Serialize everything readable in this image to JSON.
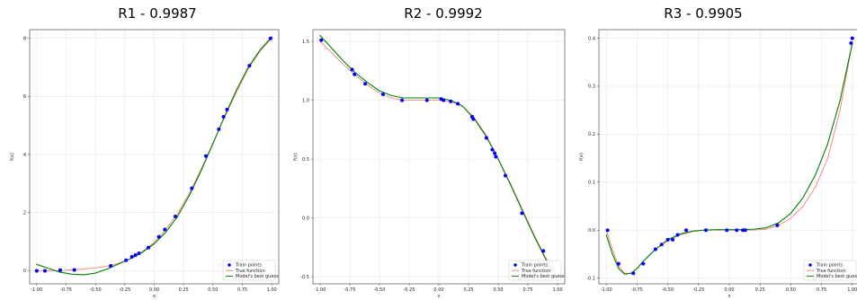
{
  "legend": {
    "train": "Train points",
    "true": "True function",
    "model": "Model's best guess"
  },
  "colors": {
    "train": "#0000ff",
    "true": "#f08080",
    "model": "#008000",
    "grid": "#e6e6e6"
  },
  "chart_data": [
    {
      "type": "line",
      "title": "R1 - 0.9987",
      "xlabel": "x",
      "ylabel": "f(x)",
      "xlim": [
        -1.06,
        1.06
      ],
      "ylim": [
        -0.45,
        8.3
      ],
      "xticks": [
        -1.0,
        -0.75,
        -0.5,
        -0.25,
        0.0,
        0.25,
        0.5,
        0.75,
        1.0
      ],
      "xtick_labels": [
        "-1.00",
        "-0.75",
        "-0.50",
        "-0.25",
        "0.00",
        "0.25",
        "0.50",
        "0.75",
        "1.00"
      ],
      "yticks": [
        0,
        2,
        4,
        6,
        8
      ],
      "ytick_labels": [
        "0",
        "2",
        "4",
        "6",
        "8"
      ],
      "grid": true,
      "legend_position": "bottom-right",
      "train_points": {
        "x": [
          -1.0,
          -0.93,
          -0.8,
          -0.68,
          -0.37,
          -0.24,
          -0.19,
          -0.16,
          -0.13,
          -0.05,
          0.04,
          0.09,
          0.18,
          0.32,
          0.44,
          0.55,
          0.59,
          0.62,
          0.81,
          0.99
        ],
        "y": [
          0.0,
          0.0,
          0.02,
          0.03,
          0.17,
          0.36,
          0.48,
          0.54,
          0.6,
          0.8,
          1.17,
          1.42,
          1.87,
          2.84,
          3.95,
          4.87,
          5.3,
          5.55,
          7.06,
          8.0
        ]
      },
      "series": [
        {
          "name": "True function",
          "x": [
            -1.0,
            -0.9,
            -0.8,
            -0.7,
            -0.6,
            -0.5,
            -0.4,
            -0.3,
            -0.2,
            -0.1,
            0.0,
            0.1,
            0.2,
            0.3,
            0.4,
            0.5,
            0.6,
            0.7,
            0.8,
            0.9,
            1.0
          ],
          "y": [
            0.0,
            0.0,
            0.0,
            0.03,
            0.06,
            0.1,
            0.16,
            0.26,
            0.42,
            0.66,
            0.98,
            1.42,
            1.98,
            2.68,
            3.5,
            4.4,
            5.3,
            6.15,
            6.95,
            7.55,
            8.0
          ]
        },
        {
          "name": "Model's best guess",
          "x": [
            -1.0,
            -0.9,
            -0.8,
            -0.7,
            -0.6,
            -0.5,
            -0.4,
            -0.3,
            -0.2,
            -0.1,
            0.0,
            0.1,
            0.2,
            0.3,
            0.4,
            0.5,
            0.6,
            0.7,
            0.8,
            0.9,
            1.0
          ],
          "y": [
            0.22,
            0.08,
            -0.05,
            -0.12,
            -0.14,
            -0.08,
            0.06,
            0.24,
            0.42,
            0.64,
            0.93,
            1.33,
            1.88,
            2.6,
            3.45,
            4.38,
            5.33,
            6.22,
            7.0,
            7.6,
            8.05
          ]
        }
      ]
    },
    {
      "type": "line",
      "title": "R2 - 0.9992",
      "xlabel": "x",
      "ylabel": "f(x)",
      "xlim": [
        -1.06,
        1.06
      ],
      "ylim": [
        -0.56,
        1.6
      ],
      "xticks": [
        -1.0,
        -0.75,
        -0.5,
        -0.25,
        0.0,
        0.25,
        0.5,
        0.75,
        1.0
      ],
      "xtick_labels": [
        "-1.00",
        "-0.75",
        "-0.50",
        "-0.25",
        "0.00",
        "0.25",
        "0.50",
        "0.75",
        "1.00"
      ],
      "yticks": [
        -0.5,
        0.0,
        0.5,
        1.0,
        1.5
      ],
      "ytick_labels": [
        "-0.5",
        "0.0",
        "0.5",
        "1.0",
        "1.5"
      ],
      "grid": true,
      "legend_position": "bottom-right",
      "train_points": {
        "x": [
          -0.99,
          -0.73,
          -0.71,
          -0.62,
          -0.47,
          -0.31,
          -0.1,
          0.02,
          0.04,
          0.1,
          0.16,
          0.28,
          0.29,
          0.4,
          0.45,
          0.47,
          0.48,
          0.56,
          0.7,
          0.88
        ],
        "y": [
          1.51,
          1.26,
          1.22,
          1.14,
          1.05,
          1.0,
          1.0,
          1.01,
          1.0,
          0.99,
          0.97,
          0.86,
          0.84,
          0.68,
          0.58,
          0.55,
          0.52,
          0.36,
          0.04,
          -0.28
        ]
      },
      "series": [
        {
          "name": "True function",
          "x": [
            -1.0,
            -0.9,
            -0.8,
            -0.7,
            -0.6,
            -0.5,
            -0.4,
            -0.3,
            -0.2,
            -0.1,
            0.0,
            0.1,
            0.2,
            0.3,
            0.4,
            0.5,
            0.6,
            0.7,
            0.8,
            0.9,
            1.0
          ],
          "y": [
            1.5,
            1.4,
            1.3,
            1.21,
            1.13,
            1.06,
            1.02,
            1.0,
            1.0,
            1.0,
            1.0,
            0.99,
            0.95,
            0.85,
            0.7,
            0.5,
            0.3,
            0.08,
            -0.14,
            -0.34,
            -0.5
          ]
        },
        {
          "name": "Model's best guess",
          "x": [
            -1.0,
            -0.9,
            -0.8,
            -0.7,
            -0.6,
            -0.5,
            -0.4,
            -0.3,
            -0.2,
            -0.1,
            0.0,
            0.1,
            0.2,
            0.3,
            0.4,
            0.5,
            0.6,
            0.7,
            0.8,
            0.9,
            1.0
          ],
          "y": [
            1.55,
            1.44,
            1.33,
            1.23,
            1.15,
            1.08,
            1.04,
            1.02,
            1.02,
            1.02,
            1.02,
            1.0,
            0.95,
            0.84,
            0.69,
            0.5,
            0.29,
            0.07,
            -0.15,
            -0.35,
            -0.52
          ]
        }
      ]
    },
    {
      "type": "line",
      "title": "R3 - 0.9905",
      "xlabel": "x",
      "ylabel": "f(x)",
      "xlim": [
        -1.06,
        1.06
      ],
      "ylim": [
        -0.112,
        0.418
      ],
      "xticks": [
        -1.0,
        -0.75,
        -0.5,
        -0.25,
        0.0,
        0.25,
        0.5,
        0.75,
        1.0
      ],
      "xtick_labels": [
        "-1.00",
        "-0.75",
        "-0.50",
        "-0.25",
        "0.00",
        "0.25",
        "0.50",
        "0.75",
        "1.00"
      ],
      "yticks": [
        -0.1,
        0.0,
        0.1,
        0.2,
        0.3,
        0.4
      ],
      "ytick_labels": [
        "-0.1",
        "0.0",
        "0.1",
        "0.2",
        "0.3",
        "0.4"
      ],
      "grid": true,
      "legend_position": "bottom-right",
      "train_points": {
        "x": [
          -0.99,
          -0.9,
          -0.78,
          -0.7,
          -0.6,
          -0.55,
          -0.5,
          -0.46,
          -0.42,
          -0.35,
          -0.19,
          -0.02,
          0.06,
          0.11,
          0.13,
          0.39,
          0.99,
          1.0
        ],
        "y": [
          0.0,
          -0.07,
          -0.09,
          -0.07,
          -0.04,
          -0.03,
          -0.02,
          -0.02,
          -0.01,
          0.0,
          0.0,
          0.0,
          0.0,
          0.0,
          0.0,
          0.01,
          0.39,
          0.4
        ]
      },
      "series": [
        {
          "name": "True function",
          "x": [
            -1.0,
            -0.95,
            -0.9,
            -0.85,
            -0.8,
            -0.75,
            -0.7,
            -0.6,
            -0.5,
            -0.4,
            -0.3,
            -0.2,
            -0.1,
            0.0,
            0.1,
            0.2,
            0.3,
            0.4,
            0.5,
            0.6,
            0.7,
            0.8,
            0.9,
            1.0
          ],
          "y": [
            0.0,
            -0.04,
            -0.075,
            -0.09,
            -0.09,
            -0.08,
            -0.065,
            -0.04,
            -0.022,
            -0.01,
            -0.003,
            0.0,
            0.0,
            0.0,
            0.0,
            0.0,
            0.002,
            0.01,
            0.025,
            0.05,
            0.09,
            0.15,
            0.25,
            0.39
          ]
        },
        {
          "name": "Model's best guess",
          "x": [
            -1.0,
            -0.95,
            -0.9,
            -0.85,
            -0.8,
            -0.75,
            -0.7,
            -0.6,
            -0.5,
            -0.4,
            -0.3,
            -0.2,
            -0.1,
            0.0,
            0.1,
            0.2,
            0.3,
            0.4,
            0.5,
            0.6,
            0.7,
            0.8,
            0.9,
            1.0
          ],
          "y": [
            -0.01,
            -0.05,
            -0.08,
            -0.092,
            -0.09,
            -0.08,
            -0.065,
            -0.04,
            -0.02,
            -0.008,
            -0.002,
            0.0,
            0.001,
            0.001,
            0.001,
            0.002,
            0.005,
            0.015,
            0.035,
            0.068,
            0.115,
            0.18,
            0.27,
            0.39
          ]
        }
      ]
    }
  ]
}
